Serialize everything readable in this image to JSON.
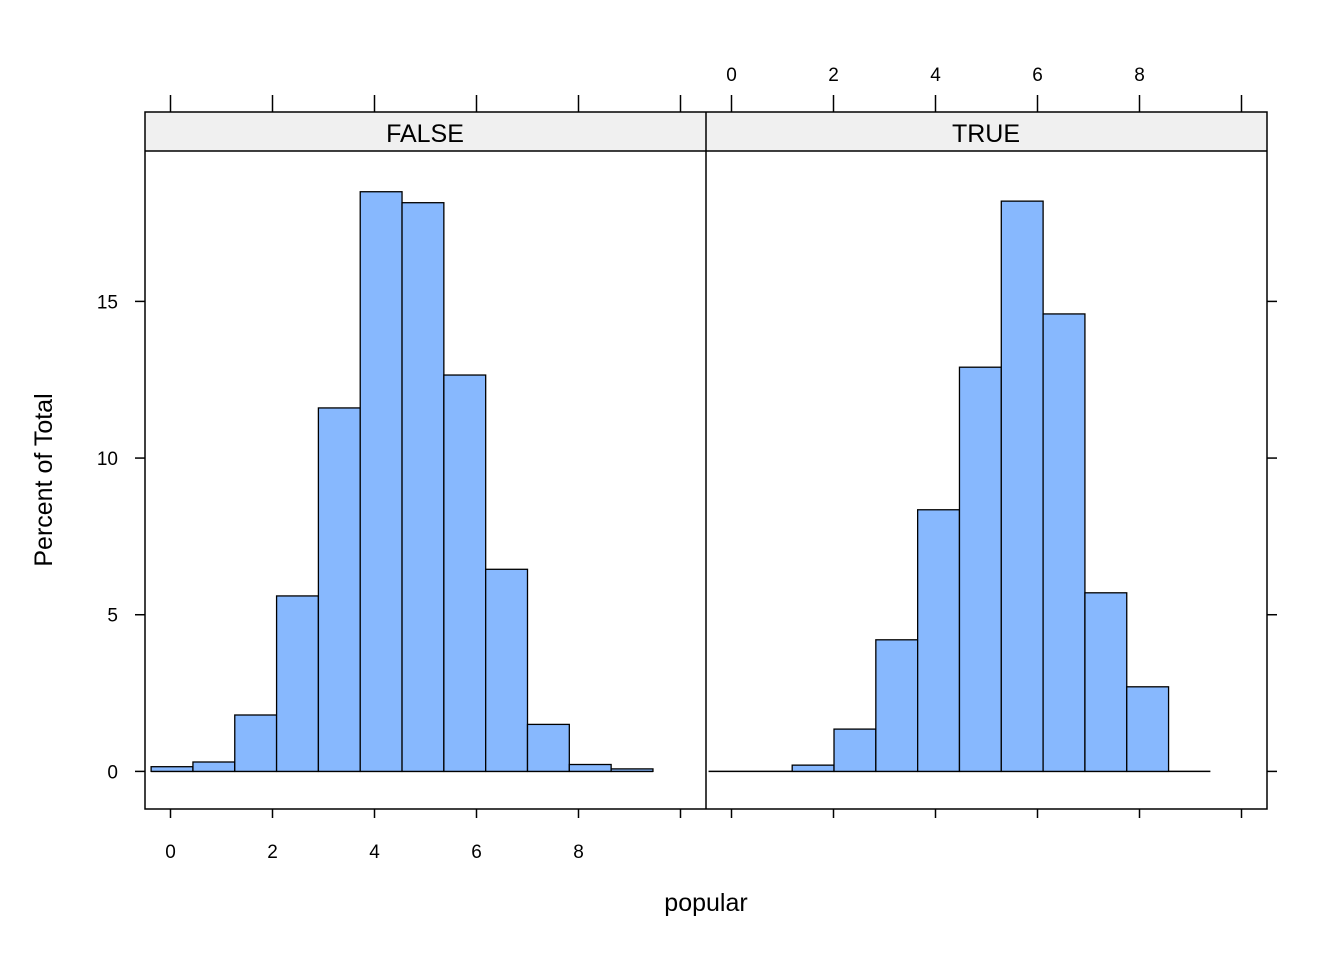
{
  "chart_data": {
    "type": "bar",
    "xlabel": "popular",
    "ylabel": "Percent of Total",
    "xlim": [
      -0.5,
      10.5
    ],
    "ylim": [
      -1.2,
      19.8
    ],
    "xticks": [
      "0",
      "2",
      "4",
      "6",
      "8"
    ],
    "yticks": [
      "0",
      "5",
      "10",
      "15"
    ],
    "bar_color": "#87B8FE",
    "strip_color": "#F0F0F0",
    "panels": [
      {
        "strip": "FALSE",
        "bin_edges": [
          -0.38,
          0.44,
          1.26,
          2.08,
          2.9,
          3.72,
          4.54,
          5.36,
          6.18,
          7.0,
          7.82,
          8.64,
          9.46
        ],
        "values": [
          0.15,
          0.3,
          1.8,
          5.6,
          11.6,
          18.5,
          18.15,
          12.65,
          6.45,
          1.5,
          0.22,
          0.08
        ]
      },
      {
        "strip": "TRUE",
        "bin_edges": [
          -0.45,
          0.37,
          1.19,
          2.01,
          2.83,
          3.65,
          4.47,
          5.29,
          6.11,
          6.93,
          7.75,
          8.57,
          9.39
        ],
        "values": [
          0.0,
          0.0,
          0.2,
          1.35,
          4.2,
          8.35,
          12.9,
          18.2,
          14.6,
          5.7,
          2.7,
          0.0
        ]
      }
    ]
  }
}
